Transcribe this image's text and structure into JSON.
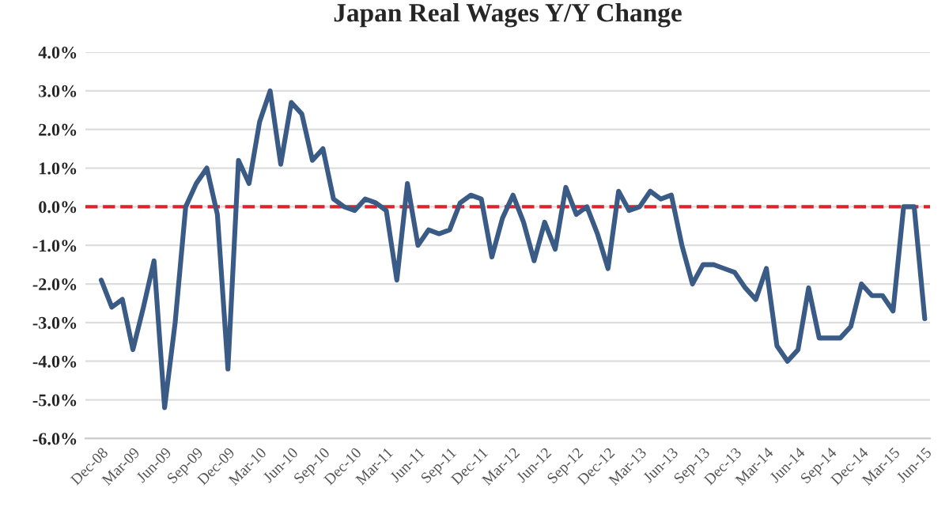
{
  "chart_data": {
    "type": "line",
    "title": "Japan Real Wages Y/Y Change",
    "categories": [
      "Dec-08",
      null,
      null,
      "Mar-09",
      null,
      null,
      "Jun-09",
      null,
      null,
      "Sep-09",
      null,
      null,
      "Dec-09",
      null,
      null,
      "Mar-10",
      null,
      null,
      "Jun-10",
      null,
      null,
      "Sep-10",
      null,
      null,
      "Dec-10",
      null,
      null,
      "Mar-11",
      null,
      null,
      "Jun-11",
      null,
      null,
      "Sep-11",
      null,
      null,
      "Dec-11",
      null,
      null,
      "Mar-12",
      null,
      null,
      "Jun-12",
      null,
      null,
      "Sep-12",
      null,
      null,
      "Dec-12",
      null,
      null,
      "Mar-13",
      null,
      null,
      "Jun-13",
      null,
      null,
      "Sep-13",
      null,
      null,
      "Dec-13",
      null,
      null,
      "Mar-14",
      null,
      null,
      "Jun-14",
      null,
      null,
      "Sep-14",
      null,
      null,
      "Dec-14",
      null,
      null,
      "Mar-15",
      null,
      null,
      "Jun-15"
    ],
    "series": [
      {
        "color": "#3b5b87",
        "values": [
          -1.9,
          -2.6,
          -2.4,
          -3.7,
          -2.6,
          -1.4,
          -5.2,
          -3.0,
          0.0,
          0.6,
          1.0,
          -0.2,
          -4.2,
          1.2,
          0.6,
          2.2,
          3.0,
          1.1,
          2.7,
          2.4,
          1.2,
          1.5,
          0.2,
          0.0,
          -0.1,
          0.2,
          0.1,
          -0.1,
          -1.9,
          0.6,
          -1.0,
          -0.6,
          -0.7,
          -0.6,
          0.1,
          0.3,
          0.2,
          -1.3,
          -0.3,
          0.3,
          -0.4,
          -1.4,
          -0.4,
          -1.1,
          0.5,
          -0.2,
          0.0,
          -0.7,
          -1.6,
          0.4,
          -0.1,
          0.0,
          0.4,
          0.2,
          0.3,
          -1.0,
          -2.0,
          -1.5,
          -1.5,
          -1.6,
          -1.7,
          -2.1,
          -2.4,
          -1.6,
          -3.6,
          -4.0,
          -3.7,
          -2.1,
          -3.4,
          -3.4,
          -3.4,
          -3.1,
          -2.0,
          -2.3,
          -2.3,
          -2.7,
          0.0,
          0.0,
          -2.9
        ]
      }
    ],
    "ylim": [
      -6,
      4
    ],
    "yticks": [
      {
        "value": -6,
        "label": "-6.0%"
      },
      {
        "value": -5,
        "label": "-5.0%"
      },
      {
        "value": -4,
        "label": "-4.0%"
      },
      {
        "value": -3,
        "label": "-3.0%"
      },
      {
        "value": -2,
        "label": "-2.0%"
      },
      {
        "value": -1,
        "label": "-1.0%"
      },
      {
        "value": 0,
        "label": "0.0%"
      },
      {
        "value": 1,
        "label": "1.0%"
      },
      {
        "value": 2,
        "label": "2.0%"
      },
      {
        "value": 3,
        "label": "3.0%"
      },
      {
        "value": 4,
        "label": "4.0%"
      }
    ],
    "ref_lines": [
      {
        "axis": "y",
        "value": 0,
        "label": null,
        "color": "#d9262c",
        "line_style": "dashed"
      }
    ],
    "grid": "y",
    "legend": false,
    "line_style": "solid",
    "marker": "none"
  }
}
